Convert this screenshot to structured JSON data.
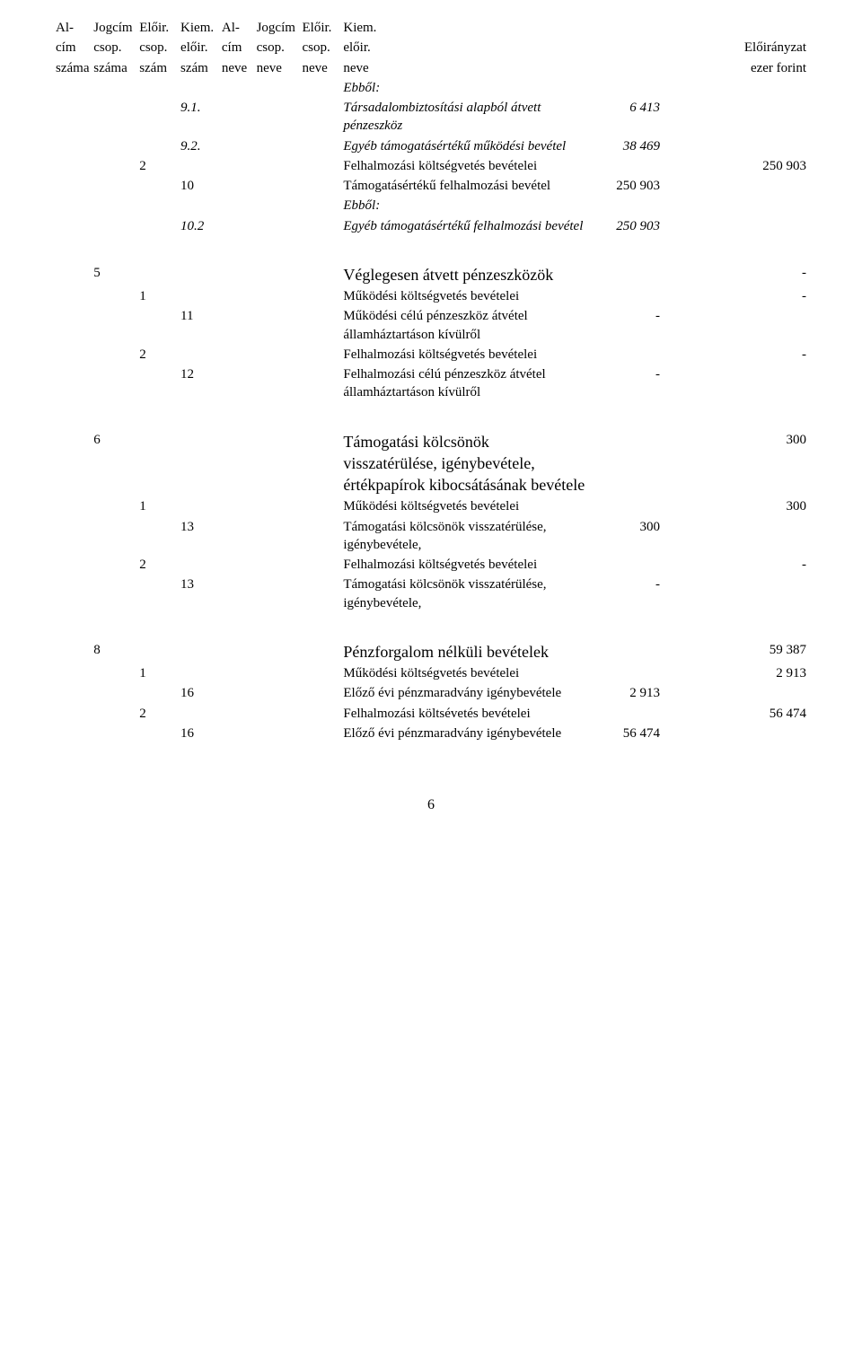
{
  "header": {
    "h1": {
      "r1": "Al-",
      "r2": "cím",
      "r3": "száma"
    },
    "h2": {
      "r1": "Jogcím",
      "r2": "csop.",
      "r3": "száma"
    },
    "h3": {
      "r1": "Előir.",
      "r2": "csop.",
      "r3": "szám"
    },
    "h4": {
      "r1": "Kiem.",
      "r2": "előir.",
      "r3": "szám"
    },
    "h5": {
      "r1": "Al-",
      "r2": "cím",
      "r3": "neve"
    },
    "h6": {
      "r1": "Jogcím",
      "r2": "csop.",
      "r3": "neve"
    },
    "h7": {
      "r1": "Előir.",
      "r2": "csop.",
      "r3": "neve"
    },
    "h8": {
      "r1": "Kiem.",
      "r2": "előir.",
      "r3": "neve"
    },
    "h11": {
      "r2": "Előirányzat",
      "r3": "ezer forint"
    }
  },
  "rows": [
    {
      "c8": "Ebből:",
      "italic": true
    },
    {
      "c4": "9.1.",
      "c8": "Társadalombiztosítási alapból átvett pénzeszköz",
      "c9": "6 413",
      "italic": true
    },
    {
      "c4": "9.2.",
      "c8": "Egyéb támogatásértékű működési bevétel",
      "c9": "38 469",
      "italic": true
    },
    {
      "c3": "2",
      "c8": "Felhalmozási költségvetés bevételei",
      "c11": "250 903"
    },
    {
      "c4": "10",
      "c8": "Támogatásértékű felhalmozási bevétel",
      "c9": "250 903"
    },
    {
      "c8": "Ebből:",
      "italic": true
    },
    {
      "c4": "10.2",
      "c8": "Egyéb támogatásértékű felhalmozási bevétel",
      "c9": "250 903",
      "italic": true
    },
    {
      "spacer": true
    },
    {
      "c2": "5",
      "c8": "Véglegesen átvett pénzeszközök",
      "c11": "-",
      "title": true
    },
    {
      "c3": "1",
      "c8": "Működési költségvetés bevételei",
      "c11": "-"
    },
    {
      "c4": "11",
      "c8": "Működési célú pénzeszköz átvétel államháztartáson kívülről",
      "c9": "-"
    },
    {
      "c3": "2",
      "c8": "Felhalmozási költségvetés bevételei",
      "c11": "-"
    },
    {
      "c4": "12",
      "c8": "Felhalmozási célú pénzeszköz átvétel államháztartáson kívülről",
      "c9": "-"
    },
    {
      "spacer": true
    },
    {
      "c2": "6",
      "c8": "Támogatási kölcsönök visszatérülése, igénybevétele, értékpapírok kibocsátásának bevétele",
      "c11": "300",
      "title": true
    },
    {
      "c3": "1",
      "c8": "Működési költségvetés bevételei",
      "c11": "300"
    },
    {
      "c4": "13",
      "c8": "Támogatási kölcsönök visszatérülése, igénybevétele,",
      "c9": "300"
    },
    {
      "c3": "2",
      "c8": "Felhalmozási költségvetés bevételei",
      "c11": "-"
    },
    {
      "c4": "13",
      "c8": "Támogatási kölcsönök visszatérülése, igénybevétele,",
      "c9": "-"
    },
    {
      "spacer": true
    },
    {
      "c2": "8",
      "c8": "Pénzforgalom nélküli bevételek",
      "c11": "59 387",
      "title": true
    },
    {
      "c3": "1",
      "c8": "Működési költségvetés bevételei",
      "c11": "2 913"
    },
    {
      "c4": "16",
      "c8": "Előző évi pénzmaradvány igénybevétele",
      "c9": "2 913"
    },
    {
      "c3": "2",
      "c8": "Felhalmozási költsévetés bevételei",
      "c11": "56 474"
    },
    {
      "c4": "16",
      "c8": "Előző évi pénzmaradvány igénybevétele",
      "c9": "56 474"
    }
  ],
  "page_number": "6"
}
